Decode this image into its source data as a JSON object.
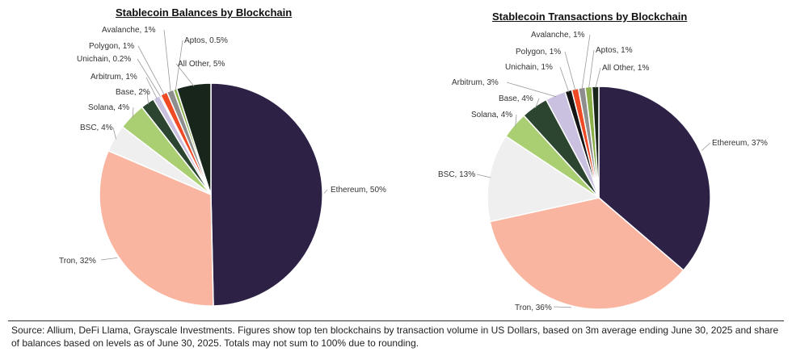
{
  "colors": {
    "Ethereum": "#2e2146",
    "Tron": "#f9b5a0",
    "BSC": "#efefef",
    "Solana": "#a9cf72",
    "Base": "#2b4530",
    "Arbitrum": "#c9c1df",
    "Unichain": "#161616",
    "Polygon": "#ef4a23",
    "Avalanche": "#8e8e8e",
    "Aptos": "#8bb04a",
    "All Other": "#17251a"
  },
  "chart_data": [
    {
      "type": "pie",
      "title": "Stablecoin Balances by Blockchain",
      "slices": [
        {
          "name": "Ethereum",
          "value": 50,
          "label": "Ethereum, 50%"
        },
        {
          "name": "Tron",
          "value": 32,
          "label": "Tron, 32%"
        },
        {
          "name": "BSC",
          "value": 4,
          "label": "BSC, 4%"
        },
        {
          "name": "Solana",
          "value": 4,
          "label": "Solana, 4%"
        },
        {
          "name": "Base",
          "value": 2,
          "label": "Base, 2%"
        },
        {
          "name": "Arbitrum",
          "value": 1,
          "label": "Arbitrum, 1%"
        },
        {
          "name": "Unichain",
          "value": 0.2,
          "label": "Unichain, 0.2%"
        },
        {
          "name": "Polygon",
          "value": 1,
          "label": "Polygon, 1%"
        },
        {
          "name": "Avalanche",
          "value": 1,
          "label": "Avalanche, 1%"
        },
        {
          "name": "Aptos",
          "value": 0.5,
          "label": "Aptos, 0.5%"
        },
        {
          "name": "All Other",
          "value": 5,
          "label": "All Other, 5%"
        }
      ]
    },
    {
      "type": "pie",
      "title": "Stablecoin Transactions by Blockchain",
      "slices": [
        {
          "name": "Ethereum",
          "value": 37,
          "label": "Ethereum, 37%"
        },
        {
          "name": "Tron",
          "value": 36,
          "label": "Tron, 36%"
        },
        {
          "name": "BSC",
          "value": 13,
          "label": "BSC, 13%"
        },
        {
          "name": "Solana",
          "value": 4,
          "label": "Solana, 4%"
        },
        {
          "name": "Base",
          "value": 4,
          "label": "Base, 4%"
        },
        {
          "name": "Arbitrum",
          "value": 3,
          "label": "Arbitrum, 3%"
        },
        {
          "name": "Unichain",
          "value": 1,
          "label": "Unichain, 1%"
        },
        {
          "name": "Polygon",
          "value": 1,
          "label": "Polygon, 1%"
        },
        {
          "name": "Avalanche",
          "value": 1,
          "label": "Avalanche, 1%"
        },
        {
          "name": "Aptos",
          "value": 1,
          "label": "Aptos, 1%"
        },
        {
          "name": "All Other",
          "value": 1,
          "label": "All Other, 1%"
        }
      ]
    }
  ],
  "footnote": "Source: Allium, DeFi Llama, Grayscale Investments. Figures show top ten blockchains by transaction volume in US Dollars, based on 3m average ending June 30, 2025 and share of balances based on levels as of June 30, 2025. Totals may not sum to 100% due to rounding."
}
